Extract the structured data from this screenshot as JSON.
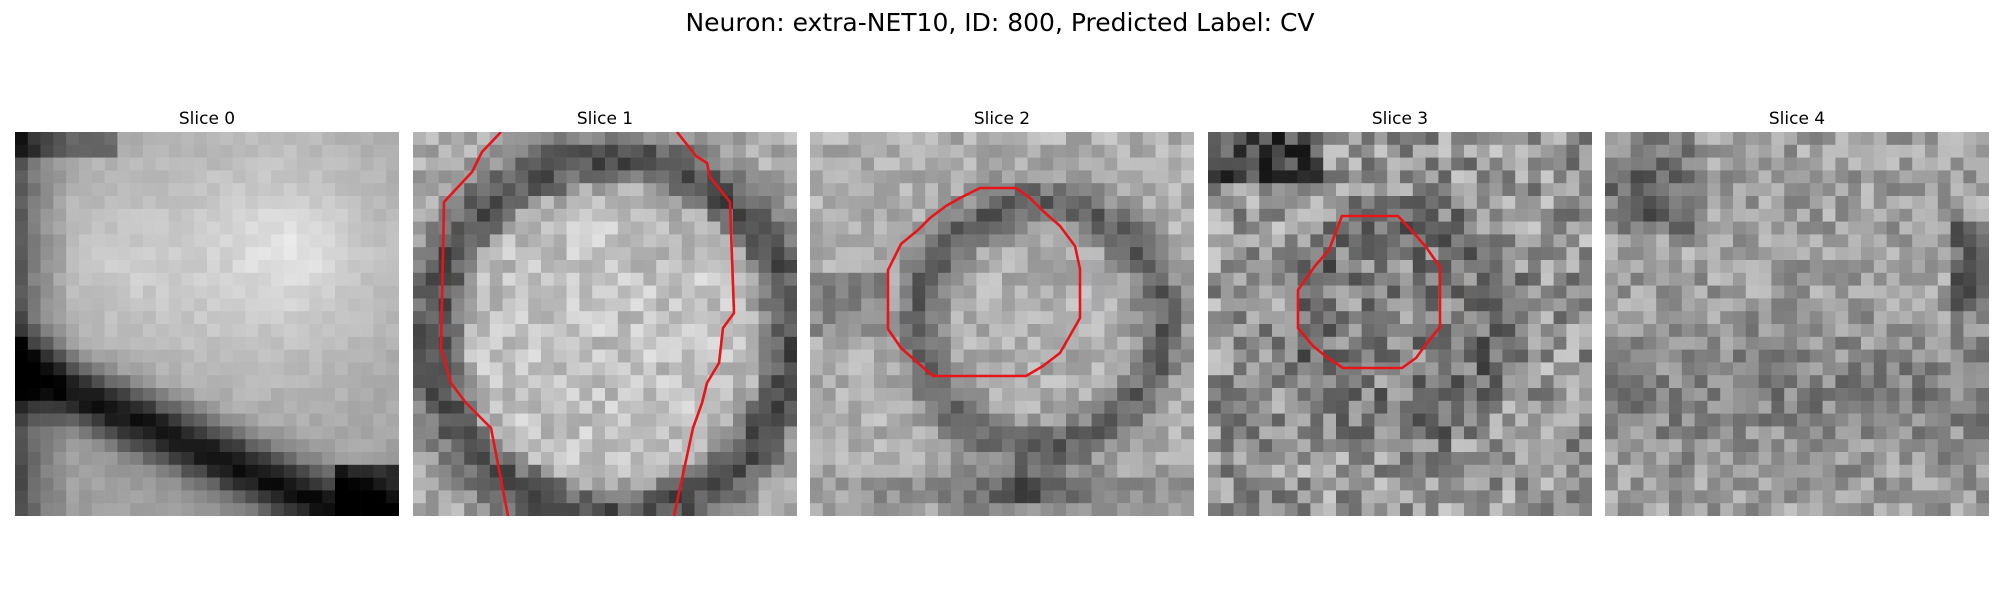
{
  "figure": {
    "title": "Neuron: extra-NET10, ID: 800, Predicted Label: CV"
  },
  "colors": {
    "contour": "#e8141a",
    "background": "#ffffff"
  },
  "panels": [
    {
      "title": "Slice 0",
      "has_contour": false
    },
    {
      "title": "Slice 1",
      "has_contour": true
    },
    {
      "title": "Slice 2",
      "has_contour": true
    },
    {
      "title": "Slice 3",
      "has_contour": true
    },
    {
      "title": "Slice 4",
      "has_contour": false
    }
  ]
}
